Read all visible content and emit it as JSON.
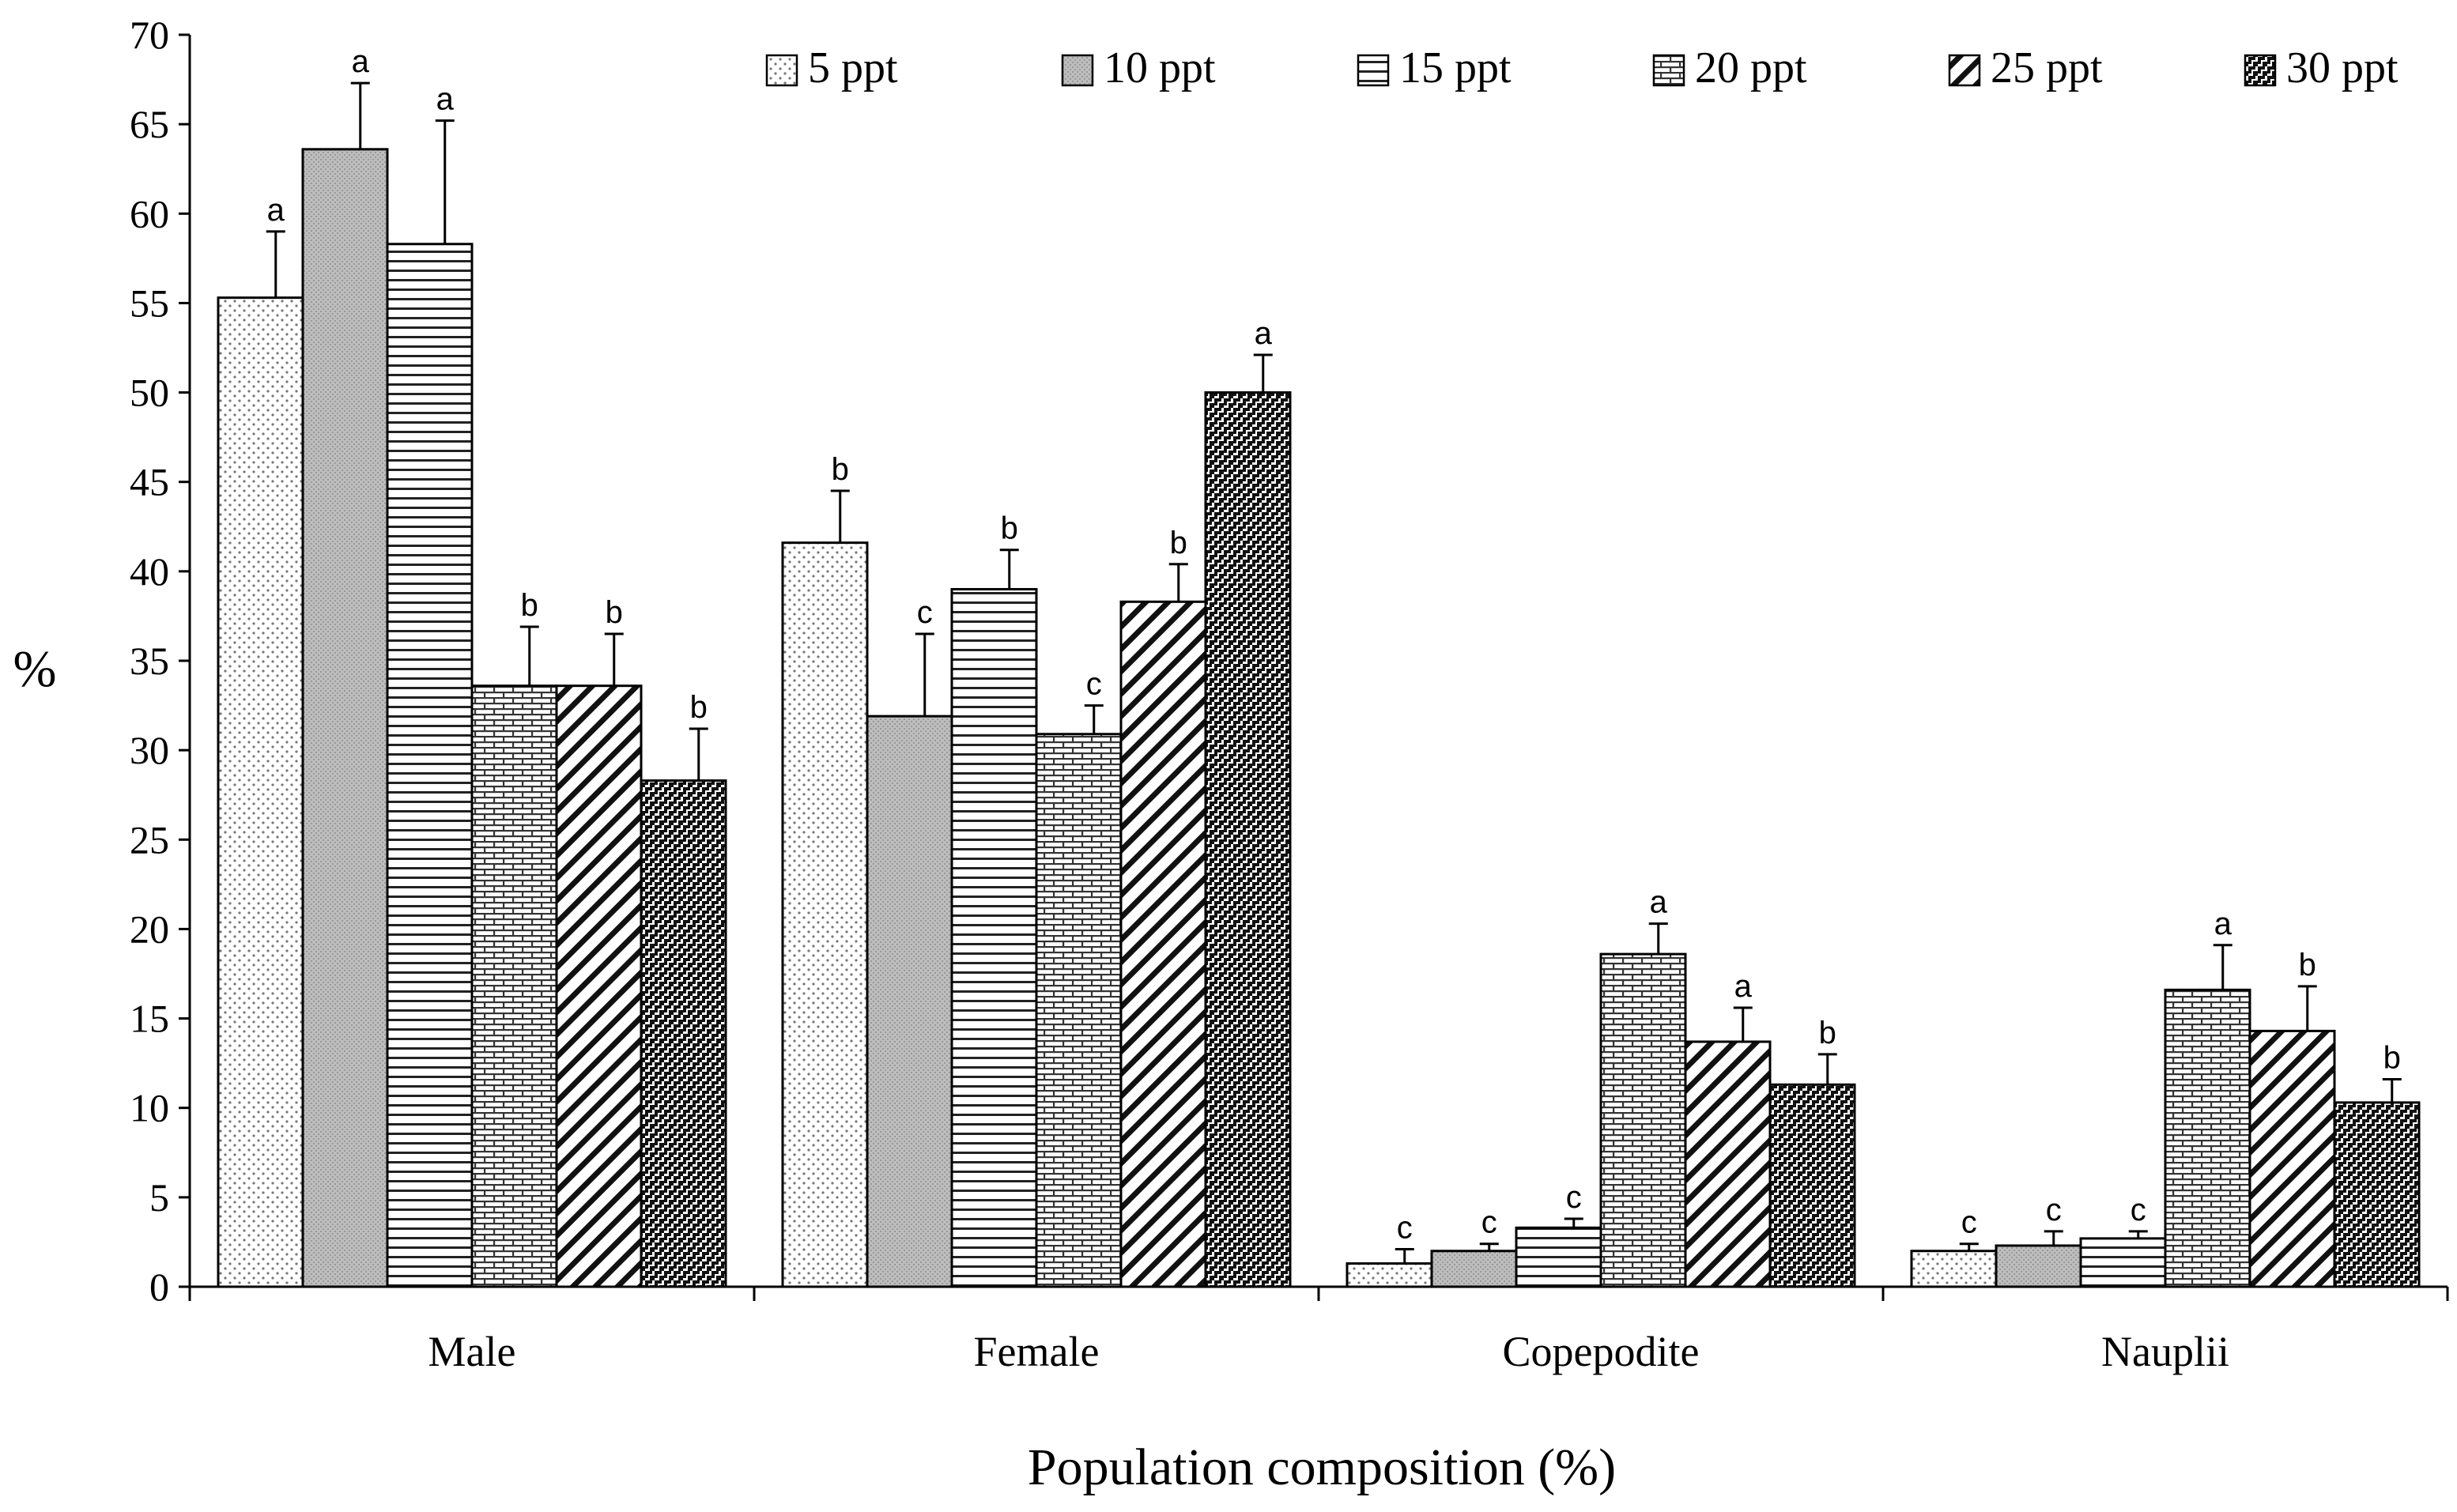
{
  "chart_data": {
    "type": "bar",
    "title": "",
    "xlabel": "Population composition (%)",
    "ylabel": "%",
    "ylim": [
      0,
      70
    ],
    "yticks": [
      "0",
      "5",
      "10",
      "15",
      "20",
      "25",
      "30",
      "35",
      "40",
      "45",
      "50",
      "55",
      "60",
      "65",
      "70"
    ],
    "grid": false,
    "legend_position": "top",
    "categories": [
      "Male",
      "Female",
      "Copepodite",
      "Nauplii"
    ],
    "series": [
      {
        "name": "5 ppt",
        "pattern": "dots-sparse",
        "values": [
          55.3,
          41.6,
          1.3,
          2.0
        ],
        "errors": [
          3.7,
          2.9,
          0.8,
          0.4
        ],
        "letters": [
          "a",
          "b",
          "c",
          "c"
        ]
      },
      {
        "name": "10 ppt",
        "pattern": "gray-fill",
        "values": [
          63.6,
          31.9,
          2.0,
          2.3
        ],
        "errors": [
          3.7,
          4.6,
          0.4,
          0.8
        ],
        "letters": [
          "a",
          "c",
          "c",
          "c"
        ]
      },
      {
        "name": "15 ppt",
        "pattern": "horizontal-lines",
        "values": [
          58.3,
          39.0,
          3.3,
          2.7
        ],
        "errors": [
          6.9,
          2.2,
          0.5,
          0.4
        ],
        "letters": [
          "a",
          "b",
          "c",
          "c"
        ]
      },
      {
        "name": "20 ppt",
        "pattern": "brick",
        "values": [
          33.6,
          30.9,
          18.6,
          16.6
        ],
        "errors": [
          3.3,
          1.6,
          1.7,
          2.5
        ],
        "letters": [
          "b",
          "c",
          "a",
          "a"
        ]
      },
      {
        "name": "25 ppt",
        "pattern": "diagonal-lines",
        "values": [
          33.6,
          38.3,
          13.7,
          14.3
        ],
        "errors": [
          2.9,
          2.1,
          1.9,
          2.5
        ],
        "letters": [
          "b",
          "b",
          "a",
          "b"
        ]
      },
      {
        "name": "30 ppt",
        "pattern": "dark-checker",
        "values": [
          28.3,
          50.0,
          11.3,
          10.3
        ],
        "errors": [
          2.9,
          2.1,
          1.7,
          1.3
        ],
        "letters": [
          "b",
          "a",
          "b",
          "b"
        ]
      }
    ]
  }
}
